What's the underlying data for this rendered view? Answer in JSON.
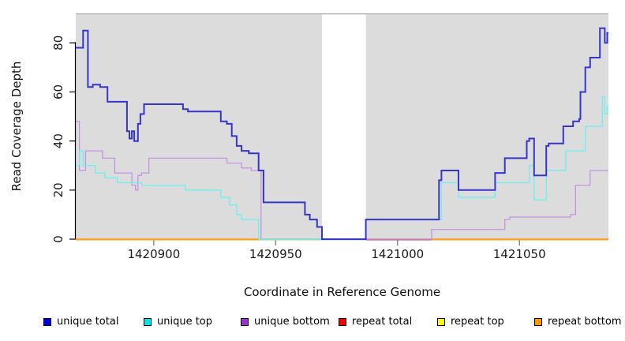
{
  "chart_data": {
    "type": "line",
    "subtype": "step",
    "title": "",
    "xlabel": "Coordinate in Reference Genome",
    "ylabel": "Read Coverage Depth",
    "xlim": [
      1420868,
      1421086.5
    ],
    "ylim": [
      0,
      92
    ],
    "x_ticks": [
      1420900,
      1420950,
      1421000,
      1421050
    ],
    "y_ticks": [
      0,
      20,
      40,
      60,
      80
    ],
    "grid": false,
    "plot_background": "#DCDCDC",
    "top_border_color": "#ABABAB",
    "masked_region": {
      "x_start": 1420969,
      "x_end": 1420987,
      "color": "#FFFFFF"
    },
    "baseline_segments": [
      {
        "x_start": 1420868,
        "x_end": 1420943,
        "color": "#FF9D20"
      },
      {
        "x_start": 1420943,
        "x_end": 1420987,
        "color": "#9EDC9E"
      },
      {
        "x_start": 1420987,
        "x_end": 1421014,
        "color": "#CD4F6E"
      },
      {
        "x_start": 1421014,
        "x_end": 1421086.5,
        "color": "#FF9D20"
      }
    ],
    "series": [
      {
        "name": "repeat total",
        "color": "#CC3344",
        "line_width": 1.2,
        "steps": [
          [
            1420868,
            0
          ]
        ]
      },
      {
        "name": "repeat top",
        "color": "#F2F20A",
        "line_width": 1.2,
        "steps": [
          [
            1420868,
            0
          ]
        ]
      },
      {
        "name": "repeat bottom",
        "color": "#FF9D20",
        "line_width": 1.5,
        "steps": [
          [
            1420868,
            0
          ]
        ]
      },
      {
        "name": "unique bottom",
        "color": "#C493E3",
        "line_width": 1.3,
        "steps": [
          [
            1420868,
            48
          ],
          [
            1420869.5,
            28
          ],
          [
            1420872,
            36
          ],
          [
            1420879,
            33
          ],
          [
            1420884,
            27
          ],
          [
            1420891,
            22
          ],
          [
            1420892.5,
            20
          ],
          [
            1420893.5,
            26
          ],
          [
            1420895,
            27
          ],
          [
            1420898,
            33
          ],
          [
            1420930,
            31
          ],
          [
            1420936,
            29
          ],
          [
            1420940,
            28
          ],
          [
            1420944,
            0
          ],
          [
            1421014,
            4
          ],
          [
            1421044,
            8
          ],
          [
            1421046,
            9
          ],
          [
            1421071,
            10
          ],
          [
            1421073,
            22
          ],
          [
            1421079,
            28
          ]
        ]
      },
      {
        "name": "unique top",
        "color": "#6DF0F0",
        "line_width": 1.3,
        "steps": [
          [
            1420868,
            30
          ],
          [
            1420869.5,
            36
          ],
          [
            1420871,
            30
          ],
          [
            1420876,
            27
          ],
          [
            1420880,
            25
          ],
          [
            1420885,
            23
          ],
          [
            1420895,
            22
          ],
          [
            1420913,
            20
          ],
          [
            1420927.5,
            17
          ],
          [
            1420931,
            14
          ],
          [
            1420934,
            10
          ],
          [
            1420936,
            8
          ],
          [
            1420943,
            0
          ],
          [
            1420987,
            8
          ],
          [
            1421018,
            23
          ],
          [
            1421025,
            17
          ],
          [
            1421040,
            23
          ],
          [
            1421054,
            30
          ],
          [
            1421056,
            16
          ],
          [
            1421061,
            28
          ],
          [
            1421069,
            36
          ],
          [
            1421077,
            46
          ],
          [
            1421084,
            58
          ],
          [
            1421085,
            51
          ],
          [
            1421086,
            54
          ]
        ]
      },
      {
        "name": "unique total",
        "color": "#3535CE",
        "line_width": 2,
        "steps": [
          [
            1420868,
            78
          ],
          [
            1420871,
            85
          ],
          [
            1420873,
            62
          ],
          [
            1420875,
            63
          ],
          [
            1420878,
            62
          ],
          [
            1420881,
            56
          ],
          [
            1420889,
            44
          ],
          [
            1420890,
            41
          ],
          [
            1420891,
            44
          ],
          [
            1420892,
            40
          ],
          [
            1420893.5,
            47
          ],
          [
            1420894.5,
            51
          ],
          [
            1420896,
            55
          ],
          [
            1420912,
            53
          ],
          [
            1420914,
            52
          ],
          [
            1420927.5,
            48
          ],
          [
            1420930,
            47
          ],
          [
            1420932,
            42
          ],
          [
            1420934,
            38
          ],
          [
            1420936,
            36
          ],
          [
            1420939,
            35
          ],
          [
            1420943,
            28
          ],
          [
            1420945,
            15
          ],
          [
            1420962,
            10
          ],
          [
            1420964,
            8
          ],
          [
            1420967,
            5
          ],
          [
            1420969,
            0
          ],
          [
            1420987,
            8
          ],
          [
            1421017,
            24
          ],
          [
            1421018,
            28
          ],
          [
            1421025,
            20
          ],
          [
            1421040,
            27
          ],
          [
            1421044,
            33
          ],
          [
            1421053,
            40
          ],
          [
            1421054,
            41
          ],
          [
            1421056,
            26
          ],
          [
            1421061,
            38
          ],
          [
            1421062,
            39
          ],
          [
            1421068,
            46
          ],
          [
            1421072,
            48
          ],
          [
            1421074.5,
            49
          ],
          [
            1421075,
            60
          ],
          [
            1421077,
            70
          ],
          [
            1421079,
            74
          ],
          [
            1421083,
            86
          ],
          [
            1421085,
            80
          ],
          [
            1421086,
            84
          ]
        ]
      }
    ],
    "legend": {
      "position": "bottom",
      "items": [
        {
          "label": "unique total",
          "color": "#0000E0"
        },
        {
          "label": "unique top",
          "color": "#00E5E5"
        },
        {
          "label": "unique bottom",
          "color": "#9933CC"
        },
        {
          "label": "repeat total",
          "color": "#EE0000"
        },
        {
          "label": "repeat top",
          "color": "#FFFF00"
        },
        {
          "label": "repeat bottom",
          "color": "#FF9900"
        }
      ]
    }
  }
}
